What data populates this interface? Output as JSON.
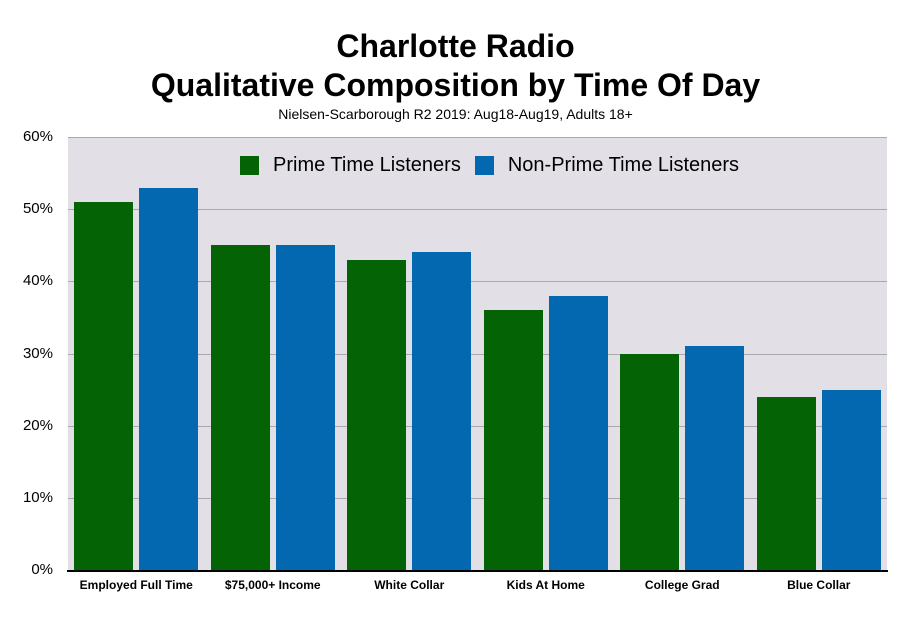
{
  "header": {
    "title_line1": "Charlotte Radio",
    "title_line2": "Qualitative Composition by Time Of Day",
    "subtitle": "Nielsen-Scarborough R2 2019: Aug18-Aug19, Adults 18+"
  },
  "legend": {
    "items": [
      {
        "label": "Prime Time Listeners",
        "color": "#046304"
      },
      {
        "label": "Non-Prime Time Listeners",
        "color": "#0468b0"
      }
    ]
  },
  "y_axis": {
    "ticks": [
      "0%",
      "10%",
      "20%",
      "30%",
      "40%",
      "50%",
      "60%"
    ]
  },
  "x_axis": {
    "labels": [
      "Employed Full Time",
      "$75,000+ Income",
      "White Collar",
      "Kids At Home",
      "College Grad",
      "Blue Collar"
    ]
  },
  "colors": {
    "plot_bg": "#e2e0e6",
    "grid": "#a9a8ac",
    "prime": "#046304",
    "non_prime": "#0468b0"
  },
  "chart_data": {
    "type": "bar",
    "title": "Charlotte Radio Qualitative Composition by Time Of Day",
    "subtitle": "Nielsen-Scarborough R2 2019: Aug18-Aug19, Adults 18+",
    "categories": [
      "Employed Full Time",
      "$75,000+ Income",
      "White Collar",
      "Kids At Home",
      "College Grad",
      "Blue Collar"
    ],
    "series": [
      {
        "name": "Prime Time Listeners",
        "color": "#046304",
        "values": [
          51,
          45,
          43,
          36,
          30,
          24
        ]
      },
      {
        "name": "Non-Prime Time Listeners",
        "color": "#0468b0",
        "values": [
          53,
          45,
          44,
          38,
          31,
          25
        ]
      }
    ],
    "xlabel": "",
    "ylabel": "",
    "ylim": [
      0,
      60
    ],
    "y_tick_format": "percent",
    "y_ticks": [
      0,
      10,
      20,
      30,
      40,
      50,
      60
    ],
    "grid": true,
    "legend_position": "top-inside"
  }
}
